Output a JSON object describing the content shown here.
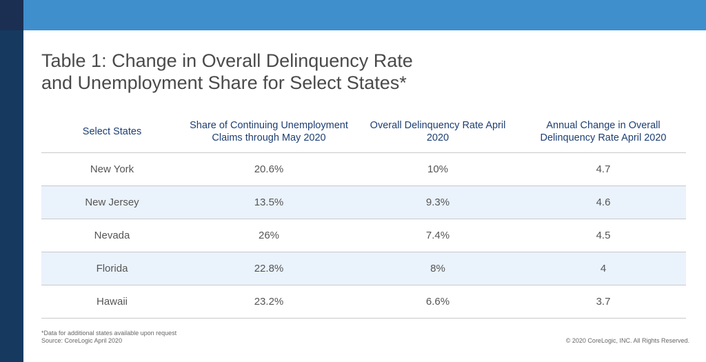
{
  "title": {
    "line1": "Table 1: Change in Overall Delinquency Rate",
    "line2": "and Unemployment Share for Select States*"
  },
  "table": {
    "headers": [
      "Select States",
      "Share of Continuing Unemployment Claims through May 2020",
      "Overall Delinquency Rate April 2020",
      "Annual Change in Overall Delinquency Rate April 2020"
    ],
    "rows": [
      [
        "New York",
        "20.6%",
        "10%",
        "4.7"
      ],
      [
        "New Jersey",
        "13.5%",
        "9.3%",
        "4.6"
      ],
      [
        "Nevada",
        "26%",
        "7.4%",
        "4.5"
      ],
      [
        "Florida",
        "22.8%",
        "8%",
        "4"
      ],
      [
        "Hawaii",
        "23.2%",
        "6.6%",
        "3.7"
      ]
    ]
  },
  "footnote": {
    "line1": "*Data for additional states available upon request",
    "line2": "Source: CoreLogic April 2020"
  },
  "copyright": "© 2020 CoreLogic, INC. All Rights Reserved.",
  "colors": {
    "top_bar": "#3f8fcd",
    "left_bar": "#163a5f",
    "header_text": "#1d3e72",
    "row_alt_bg": "#eaf2fb"
  }
}
